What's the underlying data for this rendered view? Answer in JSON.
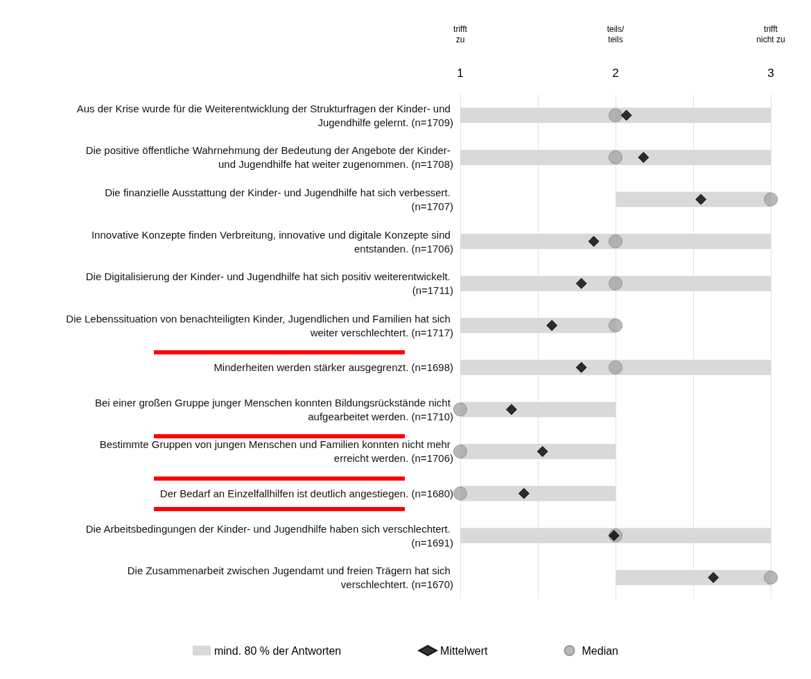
{
  "chart_data": {
    "type": "bar",
    "orientation": "horizontal",
    "categories": [
      "Aus der Krise wurde für die Weiterentwicklung der Strukturfragen der Kinder- und Jugendhilfe gelernt. (n=1709)",
      "Die positive öffentliche Wahrnehmung der Bedeutung der Angebote der Kinder- und Jugendhilfe hat weiter zugenommen. (n=1708)",
      "Die finanzielle Ausstattung der Kinder- und Jugendhilfe hat sich verbessert. (n=1707)",
      "Innovative Konzepte finden Verbreitung, innovative und digitale Konzepte sind entstanden. (n=1706)",
      "Die Digitalisierung der Kinder- und Jugendhilfe hat sich positiv weiterentwickelt. (n=1711)",
      "Die Lebenssituation von benachteiligten Kinder, Jugendlichen und Familien hat sich weiter verschlechtert. (n=1717)",
      "Minderheiten werden stärker ausgegrenzt. (n=1698)",
      "Bei einer großen Gruppe junger Menschen konnten Bildungsrückstände nicht aufgearbeitet werden. (n=1710)",
      "Bestimmte Gruppen von jungen Menschen und Familien konnten nicht mehr erreicht werden. (n=1706)",
      "Der Bedarf an Einzelfallhilfen ist deutlich angestiegen. (n=1680)",
      "Die Arbeitsbedingungen der Kinder- und Jugendhilfe haben sich verschlechtert. (n=1691)",
      "Die Zusammenarbeit zwischen Jugendamt und freien Trägern hat sich verschlechtert. (n=1670)"
    ],
    "series": [
      {
        "name": "mind. 80 % der Antworten",
        "color": "#d9d9d9",
        "base": [
          1,
          1,
          2,
          1,
          1,
          1,
          1,
          1,
          1,
          1,
          1,
          2
        ],
        "values": [
          2,
          2,
          1,
          2,
          2,
          1,
          2,
          1,
          1,
          1,
          2,
          1
        ]
      },
      {
        "name": "Mittelwert",
        "type": "scatter",
        "marker": "diamond",
        "color": "#000000",
        "values": [
          2.07,
          2.18,
          2.55,
          1.86,
          1.78,
          1.59,
          1.78,
          1.33,
          1.53,
          1.41,
          1.99,
          2.63
        ]
      },
      {
        "name": "Median",
        "type": "scatter",
        "marker": "circle",
        "color": "#a6a6a6",
        "values": [
          2,
          2,
          3,
          2,
          2,
          2,
          2,
          1,
          1,
          1,
          2,
          3
        ]
      }
    ],
    "xlim": [
      1,
      3
    ],
    "xticks": [
      1,
      2,
      3
    ],
    "annotations": [
      "trifft\nzu",
      "teils/\nteils",
      "trifft\nnicht zu"
    ],
    "grid": "x",
    "legend": "bottom"
  }
}
